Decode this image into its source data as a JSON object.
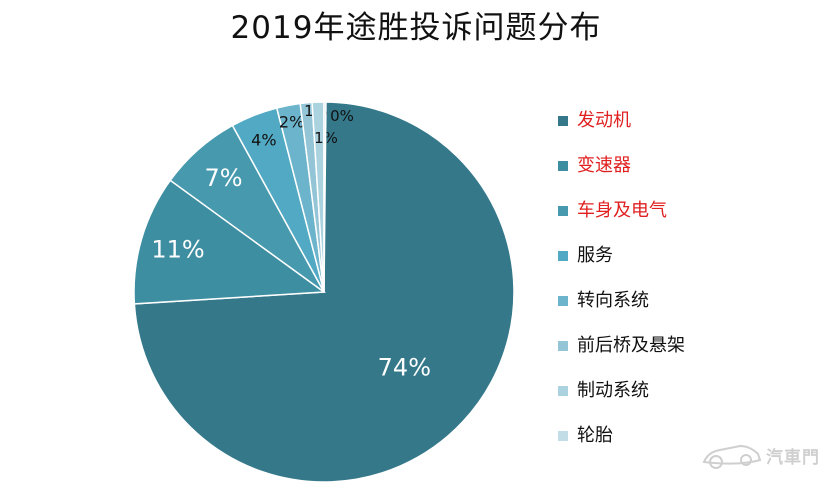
{
  "chart_data": {
    "type": "pie",
    "title": "2019年途胜投诉问题分布",
    "categories": [
      "发动机",
      "变速器",
      "车身及电气",
      "服务",
      "转向系统",
      "前后桥及悬架",
      "制动系统",
      "轮胎"
    ],
    "values": [
      74,
      11,
      7,
      4,
      2,
      1,
      1,
      0
    ],
    "data_labels": [
      "74%",
      "11%",
      "7%",
      "4%",
      "2%",
      "1%",
      "1%",
      "0%"
    ],
    "colors": [
      "#35788a",
      "#3d8ea1",
      "#4799ae",
      "#52a9c4",
      "#6cb4cc",
      "#93c5d6",
      "#abd2df",
      "#c3dde7"
    ],
    "legend_text_colors": [
      "#e02020",
      "#e02020",
      "#e02020",
      "#111111",
      "#111111",
      "#111111",
      "#111111",
      "#111111"
    ],
    "legend_position": "right",
    "start_angle_deg": 90,
    "direction": "clockwise"
  },
  "watermark": {
    "text": "汽車門",
    "icon": "car-logo-icon"
  }
}
